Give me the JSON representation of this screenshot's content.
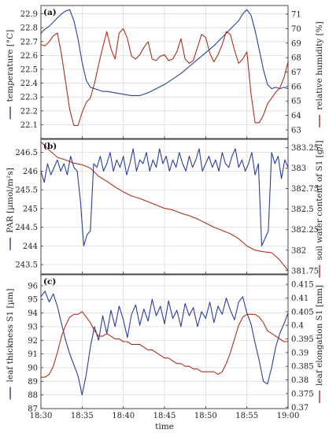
{
  "chart_data": [
    {
      "panel": "(a)",
      "type": "line",
      "xlabel": "",
      "ylabel": "temperature [°C]",
      "ylabel_right": "relative humidity [%]",
      "ylim": [
        22.0,
        22.96
      ],
      "y_ticks": [
        "22.9",
        "22.8",
        "22.7",
        "22.6",
        "22.5",
        "22.4",
        "22.3",
        "22.2",
        "22.1"
      ],
      "y_tick_values": [
        22.9,
        22.8,
        22.7,
        22.6,
        22.5,
        22.4,
        22.3,
        22.2,
        22.1
      ],
      "ylim_right": [
        62.4,
        71.6
      ],
      "y_ticks_right": [
        "71",
        "70",
        "69",
        "68",
        "67",
        "66",
        "65",
        "64",
        "63"
      ],
      "y_tick_values_right": [
        71,
        70,
        69,
        68,
        67,
        66,
        65,
        64,
        63
      ],
      "x_ticks": [
        "18:30",
        "18:35",
        "18:40",
        "18:45",
        "18:50",
        "18:55",
        "19:00"
      ],
      "x_tick_values": [
        0,
        5,
        10,
        15,
        20,
        25,
        30
      ],
      "xlim": [
        0,
        30
      ],
      "grid": true,
      "series": [
        {
          "axis": "left",
          "color": "#2b3f9c",
          "x": [
            0,
            0.5,
            1,
            1.5,
            2,
            2.5,
            3,
            3.5,
            4,
            4.5,
            5,
            5.5,
            6,
            6.5,
            7,
            7.5,
            8,
            9,
            10,
            11,
            12,
            13,
            14,
            15,
            16,
            17,
            18,
            19,
            20,
            21,
            22,
            23,
            24,
            24.5,
            25,
            25.5,
            26,
            26.5,
            27,
            27.5,
            28,
            28.5,
            29,
            29.5,
            30
          ],
          "values": [
            22.76,
            22.79,
            22.81,
            22.84,
            22.87,
            22.9,
            22.92,
            22.93,
            22.85,
            22.72,
            22.55,
            22.42,
            22.37,
            22.36,
            22.35,
            22.34,
            22.34,
            22.33,
            22.32,
            22.31,
            22.31,
            22.33,
            22.36,
            22.39,
            22.43,
            22.47,
            22.52,
            22.57,
            22.62,
            22.67,
            22.73,
            22.79,
            22.85,
            22.9,
            22.93,
            22.89,
            22.78,
            22.64,
            22.5,
            22.39,
            22.36,
            22.37,
            22.36,
            22.37,
            22.36
          ]
        },
        {
          "axis": "right",
          "color": "#a9321f",
          "x": [
            0,
            0.5,
            1,
            1.5,
            2,
            2.5,
            3,
            3.5,
            4,
            4.5,
            5,
            5.5,
            6,
            6.5,
            7,
            7.5,
            8,
            8.5,
            9,
            9.5,
            10,
            10.5,
            11,
            11.5,
            12,
            12.5,
            13,
            13.5,
            14,
            14.5,
            15,
            15.5,
            16,
            16.5,
            17,
            17.5,
            18,
            18.5,
            19,
            19.5,
            20,
            20.5,
            21,
            21.5,
            22,
            22.5,
            23,
            23.5,
            24,
            24.5,
            25,
            25.5,
            26,
            26.5,
            27,
            27.5,
            28,
            28.5,
            29,
            29.5,
            30
          ],
          "values": [
            68.9,
            68.8,
            69.1,
            69.5,
            69.7,
            68.2,
            66.3,
            64.4,
            63.3,
            63.3,
            64.2,
            64.9,
            65.2,
            66.2,
            67.5,
            68.7,
            69.8,
            68.6,
            67.9,
            69.7,
            70.0,
            69.3,
            68.1,
            67.9,
            68.2,
            68.7,
            69.1,
            67.9,
            67.8,
            68.1,
            68.2,
            67.8,
            67.9,
            68.4,
            69.3,
            67.9,
            67.6,
            67.8,
            68.7,
            69.6,
            69.4,
            68.3,
            67.7,
            68.2,
            68.9,
            69.8,
            69.6,
            68.5,
            67.6,
            67.9,
            68.4,
            65.5,
            63.5,
            63.5,
            64.0,
            64.8,
            65.2,
            65.6,
            65.9,
            66.6,
            67.7
          ]
        }
      ]
    },
    {
      "panel": "(b)",
      "type": "line",
      "xlabel": "",
      "ylabel": "PAR [µmol/m²s]",
      "ylabel_right": "soil water content of S1 [g/l]",
      "ylim": [
        243.25,
        246.85
      ],
      "y_ticks": [
        "246.5",
        "246",
        "245.5",
        "245",
        "244.5",
        "244",
        "243.5"
      ],
      "y_tick_values": [
        246.5,
        246,
        245.5,
        245,
        244.5,
        244,
        243.5
      ],
      "ylim_right": [
        381.71,
        383.35
      ],
      "y_ticks_right": [
        "383.25",
        "383",
        "382.75",
        "382.5",
        "382.25",
        "382",
        "381.75"
      ],
      "y_tick_values_right": [
        383.25,
        383,
        382.75,
        382.5,
        382.25,
        382,
        381.75
      ],
      "x_ticks": [
        "18:30",
        "18:35",
        "18:40",
        "18:45",
        "18:50",
        "18:55",
        "19:00"
      ],
      "x_tick_values": [
        0,
        5,
        10,
        15,
        20,
        25,
        30
      ],
      "xlim": [
        0,
        30
      ],
      "grid": true,
      "series": [
        {
          "axis": "left",
          "color": "#2b3f9c",
          "x": [
            0,
            0.4,
            0.8,
            1.2,
            1.6,
            2,
            2.4,
            2.8,
            3.2,
            3.6,
            4,
            4.4,
            4.8,
            5.2,
            5.6,
            6,
            6.4,
            6.8,
            7.2,
            7.6,
            8,
            8.4,
            8.8,
            9.2,
            9.6,
            10,
            10.4,
            10.8,
            11.2,
            11.6,
            12,
            12.4,
            12.8,
            13.2,
            13.6,
            14,
            14.4,
            14.8,
            15.2,
            15.6,
            16,
            16.4,
            16.8,
            17.2,
            17.6,
            18,
            18.4,
            18.8,
            19.2,
            19.6,
            20,
            20.4,
            20.8,
            21.2,
            21.6,
            22,
            22.4,
            22.8,
            23.2,
            23.6,
            24,
            24.4,
            24.8,
            25.2,
            25.6,
            26,
            26.4,
            26.8,
            27.2,
            27.6,
            28,
            28.4,
            28.8,
            29.2,
            29.6,
            30
          ],
          "values": [
            246.0,
            245.7,
            246.2,
            245.9,
            246.1,
            246.3,
            246.0,
            246.2,
            245.9,
            246.4,
            246.1,
            246.0,
            245.2,
            244.0,
            244.3,
            244.4,
            246.2,
            246.1,
            246.4,
            246.0,
            246.2,
            246.5,
            246.0,
            246.3,
            246.1,
            246.4,
            245.9,
            246.2,
            246.6,
            246.0,
            246.3,
            246.2,
            246.5,
            246.0,
            246.3,
            246.1,
            246.6,
            246.2,
            246.4,
            246.0,
            246.3,
            246.1,
            246.5,
            246.2,
            246.0,
            246.4,
            246.1,
            246.3,
            246.6,
            246.0,
            246.2,
            246.4,
            246.1,
            246.3,
            246.0,
            246.5,
            246.2,
            246.1,
            246.4,
            246.6,
            246.1,
            246.3,
            246.0,
            246.2,
            246.5,
            245.9,
            246.2,
            244.0,
            244.2,
            244.4,
            246.5,
            246.2,
            246.4,
            245.8,
            246.3,
            246.1
          ]
        },
        {
          "axis": "right",
          "color": "#a9321f",
          "x": [
            0,
            1,
            2,
            3,
            4,
            5,
            6,
            7,
            8,
            9,
            10,
            11,
            12,
            13,
            14,
            15,
            16,
            17,
            18,
            19,
            20,
            21,
            22,
            23,
            24,
            25,
            26,
            27,
            28,
            29,
            30
          ],
          "values": [
            383.32,
            383.22,
            383.13,
            383.1,
            383.06,
            383.04,
            383.0,
            382.9,
            382.84,
            382.77,
            382.71,
            382.66,
            382.63,
            382.59,
            382.55,
            382.51,
            382.49,
            382.45,
            382.42,
            382.38,
            382.33,
            382.28,
            382.24,
            382.2,
            382.14,
            382.05,
            382.0,
            381.98,
            381.97,
            381.88,
            381.75
          ]
        }
      ]
    },
    {
      "panel": "(c)",
      "type": "line",
      "xlabel": "time",
      "ylabel": "leaf thickness S1 [µm]",
      "ylabel_right": "leaf elongation S1 [mm]",
      "ylim": [
        87.0,
        96.8
      ],
      "y_ticks": [
        "96",
        "95",
        "94",
        "93",
        "92",
        "91",
        "90",
        "89",
        "88",
        "87"
      ],
      "y_tick_values": [
        96,
        95,
        94,
        93,
        92,
        91,
        90,
        89,
        88,
        87
      ],
      "ylim_right": [
        0.3695,
        0.4185
      ],
      "y_ticks_right": [
        "0.415",
        "0.41",
        "0.405",
        "0.4",
        "0.395",
        "0.39",
        "0.385",
        "0.38",
        "0.375",
        "0.37"
      ],
      "y_tick_values_right": [
        0.415,
        0.41,
        0.405,
        0.4,
        0.395,
        0.39,
        0.385,
        0.38,
        0.375,
        0.37
      ],
      "x_ticks": [
        "18:30",
        "18:35",
        "18:40",
        "18:45",
        "18:50",
        "18:55",
        "19:00"
      ],
      "x_tick_values": [
        0,
        5,
        10,
        15,
        20,
        25,
        30
      ],
      "xlim": [
        0,
        30
      ],
      "grid": true,
      "series": [
        {
          "axis": "left",
          "color": "#2b3f9c",
          "x": [
            0,
            0.5,
            1,
            1.5,
            2,
            2.5,
            3,
            3.5,
            4,
            4.5,
            5,
            5.5,
            6,
            6.5,
            7,
            7.5,
            8,
            8.5,
            9,
            9.5,
            10,
            10.5,
            11,
            11.5,
            12,
            12.5,
            13,
            13.5,
            14,
            14.5,
            15,
            15.5,
            16,
            16.5,
            17,
            17.5,
            18,
            18.5,
            19,
            19.5,
            20,
            20.5,
            21,
            21.5,
            22,
            22.5,
            23,
            23.5,
            24,
            24.5,
            25,
            25.5,
            26,
            26.5,
            27,
            27.5,
            28,
            28.5,
            29,
            29.5,
            30
          ],
          "values": [
            95.2,
            95.6,
            94.8,
            95.4,
            94.5,
            93.2,
            92.0,
            91.0,
            90.2,
            89.4,
            88.0,
            89.5,
            91.5,
            93.0,
            92.0,
            93.8,
            92.5,
            94.2,
            93.0,
            94.5,
            93.5,
            92.2,
            93.9,
            94.6,
            93.1,
            94.3,
            93.4,
            95.0,
            93.8,
            94.5,
            93.2,
            94.9,
            93.6,
            94.2,
            93.0,
            94.7,
            93.8,
            94.4,
            93.0,
            94.1,
            93.6,
            94.8,
            93.3,
            94.5,
            93.9,
            95.1,
            94.2,
            93.5,
            94.8,
            95.2,
            94.0,
            93.2,
            91.8,
            90.5,
            89.0,
            88.8,
            90.0,
            91.5,
            92.5,
            93.2,
            94.0
          ]
        },
        {
          "axis": "right",
          "color": "#a9321f",
          "x": [
            0,
            0.5,
            1,
            1.5,
            2,
            2.5,
            3,
            3.5,
            4,
            4.5,
            5,
            5.5,
            6,
            6.5,
            7,
            7.5,
            8,
            8.5,
            9,
            9.5,
            10,
            10.5,
            11,
            11.5,
            12,
            12.5,
            13,
            13.5,
            14,
            14.5,
            15,
            15.5,
            16,
            16.5,
            17,
            17.5,
            18,
            18.5,
            19,
            19.5,
            20,
            20.5,
            21,
            21.5,
            22,
            22.5,
            23,
            23.5,
            24,
            24.5,
            25,
            25.5,
            26,
            26.5,
            27,
            27.5,
            28,
            28.5,
            29,
            29.5,
            30
          ],
          "values": [
            0.381,
            0.381,
            0.382,
            0.385,
            0.39,
            0.396,
            0.4,
            0.403,
            0.404,
            0.404,
            0.405,
            0.403,
            0.401,
            0.398,
            0.396,
            0.396,
            0.397,
            0.396,
            0.395,
            0.395,
            0.394,
            0.394,
            0.393,
            0.393,
            0.393,
            0.392,
            0.391,
            0.391,
            0.39,
            0.389,
            0.388,
            0.388,
            0.387,
            0.386,
            0.386,
            0.385,
            0.385,
            0.384,
            0.384,
            0.383,
            0.383,
            0.383,
            0.383,
            0.382,
            0.383,
            0.386,
            0.39,
            0.395,
            0.4,
            0.403,
            0.404,
            0.404,
            0.404,
            0.403,
            0.401,
            0.398,
            0.397,
            0.396,
            0.395,
            0.394,
            0.394
          ]
        }
      ]
    }
  ]
}
